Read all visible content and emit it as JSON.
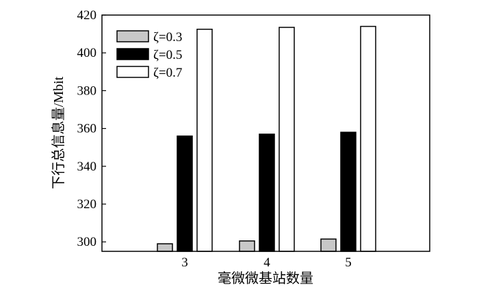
{
  "chart_data": {
    "type": "bar",
    "categories": [
      "3",
      "4",
      "5"
    ],
    "series": [
      {
        "name": "ζ=0.3",
        "values": [
          299,
          300.5,
          301.5
        ],
        "color": "#c8c8c8"
      },
      {
        "name": "ζ=0.5",
        "values": [
          356,
          357,
          358
        ],
        "color": "#000000"
      },
      {
        "name": "ζ=0.7",
        "values": [
          412.5,
          413.5,
          414
        ],
        "color": "#ffffff"
      }
    ],
    "title": "",
    "xlabel": "毫微微基站数量",
    "ylabel": "下行总信息量/Mbit",
    "ylim": [
      295,
      420
    ],
    "yticks": [
      300,
      320,
      340,
      360,
      380,
      400,
      420
    ],
    "grid": false,
    "legend_position": "top-left"
  }
}
